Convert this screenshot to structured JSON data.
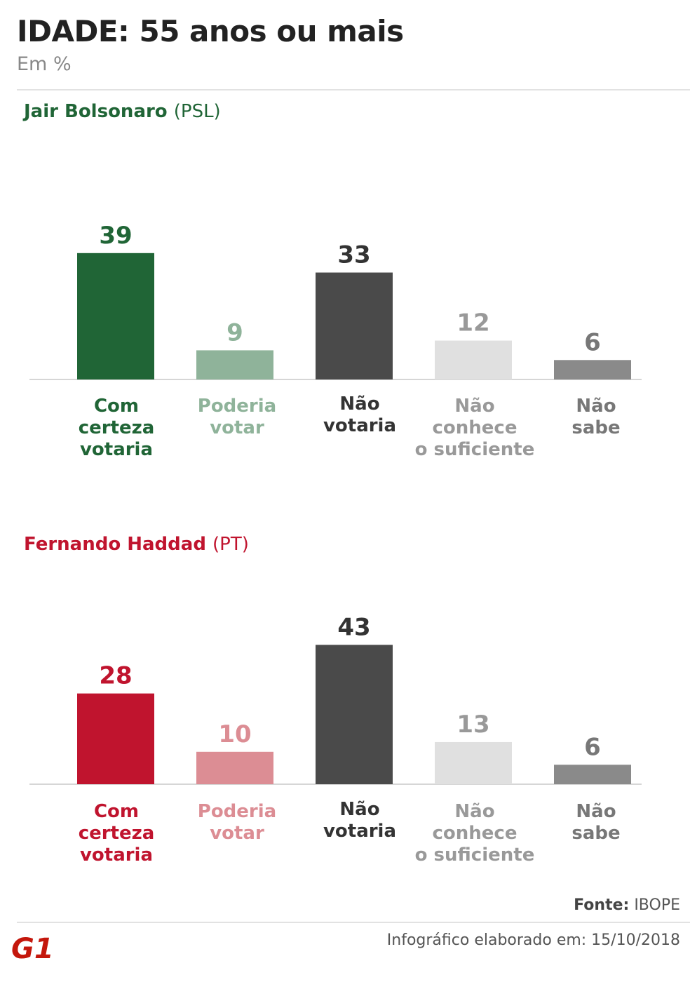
{
  "title": "IDADE: 55 anos ou mais",
  "subtitle": "Em %",
  "colors": {
    "bolsonaro_main": "#206536",
    "bolsonaro_light": "#8fb39a",
    "haddad_main": "#c0142e",
    "haddad_light": "#dc8d94",
    "dark": "#4a4a4a",
    "light_gray": "#e0e0e0",
    "mid_gray": "#8a8a8a",
    "light_gray_text": "#999999",
    "mid_gray_text": "#777777"
  },
  "chart_data": [
    {
      "type": "bar",
      "title": "Jair Bolsonaro",
      "party": "(PSL)",
      "title_color": "#206536",
      "categories": [
        [
          "Com",
          "certeza",
          "votaria"
        ],
        [
          "Poderia",
          "votar"
        ],
        [
          "Não",
          "votaria"
        ],
        [
          "Não",
          "conhece",
          "o suficiente"
        ],
        [
          "Não",
          "sabe"
        ]
      ],
      "values": [
        39,
        9,
        33,
        12,
        6
      ],
      "bar_colors": [
        "#206536",
        "#8fb39a",
        "#4a4a4a",
        "#e0e0e0",
        "#8a8a8a"
      ],
      "label_colors": [
        "#206536",
        "#8fb39a",
        "#333333",
        "#999999",
        "#777777"
      ]
    },
    {
      "type": "bar",
      "title": "Fernando Haddad",
      "party": "(PT)",
      "title_color": "#c0142e",
      "categories": [
        [
          "Com",
          "certeza",
          "votaria"
        ],
        [
          "Poderia",
          "votar"
        ],
        [
          "Não",
          "votaria"
        ],
        [
          "Não",
          "conhece",
          "o suficiente"
        ],
        [
          "Não",
          "sabe"
        ]
      ],
      "values": [
        28,
        10,
        43,
        13,
        6
      ],
      "bar_colors": [
        "#c0142e",
        "#dc8d94",
        "#4a4a4a",
        "#e0e0e0",
        "#8a8a8a"
      ],
      "label_colors": [
        "#c0142e",
        "#dc8d94",
        "#333333",
        "#999999",
        "#777777"
      ]
    }
  ],
  "footer": {
    "source_label": "Fonte:",
    "source_value": "IBOPE",
    "credit": "Infográfico elaborado em: 15/10/2018",
    "logo_text": "G1"
  }
}
